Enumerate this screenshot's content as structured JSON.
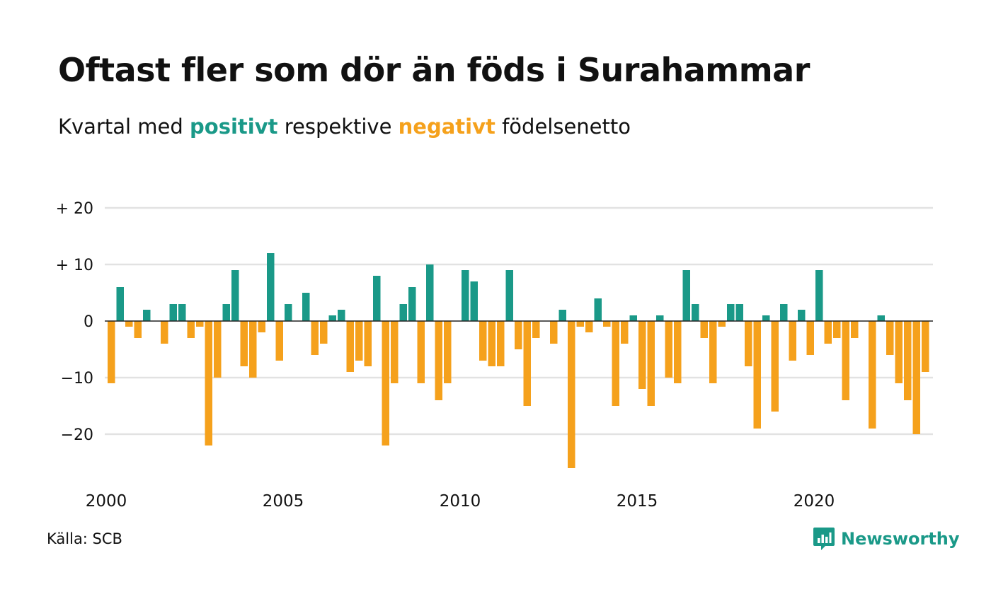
{
  "header": {
    "title": "Oftast fler som dör än föds i Surahammar",
    "subtitle_prefix": "Kvartal med",
    "subtitle_positive": "positivt",
    "subtitle_middle": "respektive",
    "subtitle_negative": "negativt",
    "subtitle_suffix": "födelsenetto"
  },
  "colors": {
    "positive": "#1a9988",
    "negative": "#f5a11c",
    "grid": "#e2e2e2",
    "zero_line": "#222222",
    "text": "#111111"
  },
  "footer": {
    "source": "Källa: SCB",
    "brand": "Newsworthy",
    "brand_icon": "newsworthy-logo-icon"
  },
  "chart_data": {
    "type": "bar",
    "start_year": 2000,
    "periods_per_year": 4,
    "x_tick_labels": [
      "2000",
      "2005",
      "2010",
      "2015",
      "2020"
    ],
    "y_ticks": [
      20,
      10,
      0,
      -10,
      -20
    ],
    "y_tick_labels": [
      "+ 20",
      "+ 10",
      "0",
      "−10",
      "−20"
    ],
    "ylim": [
      -26,
      20
    ],
    "grid": true,
    "series": [
      {
        "values": [
          -11,
          6,
          -1,
          -3,
          2,
          0,
          -4,
          3,
          3,
          -3,
          -1,
          -22,
          -10,
          3,
          9,
          -8,
          -10,
          -2,
          12,
          -7,
          3,
          0,
          5,
          -6,
          -4,
          1,
          2,
          -9,
          -7,
          -8,
          8,
          -22,
          -11,
          3,
          6,
          -11,
          10,
          -14,
          -11,
          0,
          9,
          7,
          -7,
          -8,
          -8,
          9,
          -5,
          -15,
          -3,
          0,
          -4,
          2,
          -26,
          -1,
          -2,
          4,
          -1,
          -15,
          -4,
          1,
          -12,
          -15,
          1,
          -10,
          -11,
          9,
          3,
          -3,
          -11,
          -1,
          3,
          3,
          -8,
          -19,
          1,
          -16,
          3,
          -7,
          2,
          -6,
          9,
          -4,
          -3,
          -14,
          -3,
          0,
          -19,
          1,
          -6,
          -11,
          -14,
          -20,
          -9
        ]
      }
    ]
  }
}
